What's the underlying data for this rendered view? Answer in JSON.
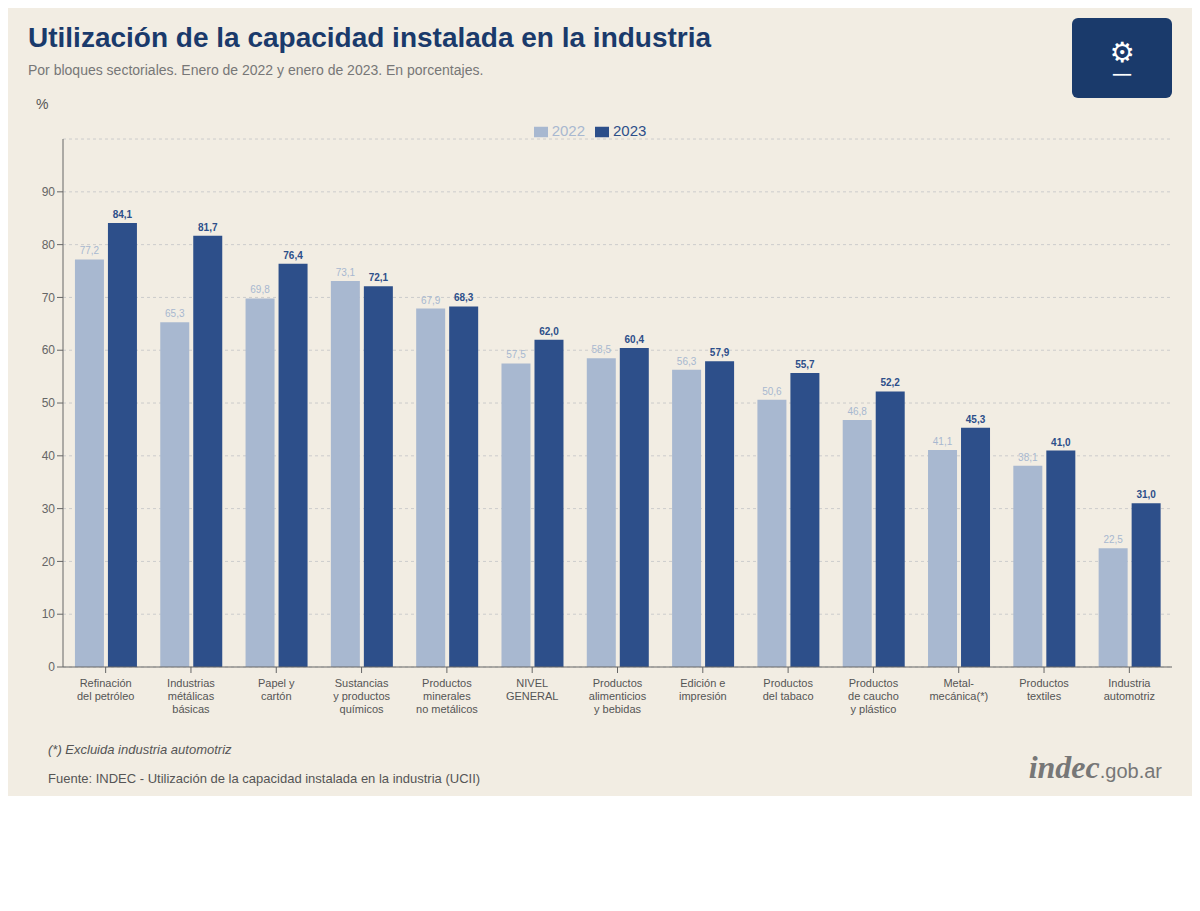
{
  "chart_data": {
    "type": "bar",
    "title": "Utilización de la capacidad instalada en la industria",
    "subtitle": "Por bloques sectoriales. Enero de 2022 y enero de 2023. En porcentajes.",
    "categories": [
      "Refinación\ndel petróleo",
      "Industrias\nmétálicas\nbásicas",
      "Papel y\ncartón",
      "Sustancias\ny productos\nquímicos",
      "Productos\nminerales\nno metálicos",
      "NIVEL\nGENERAL",
      "Productos\nalimenticios\ny bebidas",
      "Edición e\nimpresión",
      "Productos\ndel tabaco",
      "Productos\nde caucho\ny plástico",
      "Metal-\nmecánica(*)",
      "Productos\ntextiles",
      "Industria\nautomotriz"
    ],
    "series": [
      {
        "name": "2022",
        "color": "#a8b8d0",
        "values": [
          77.2,
          65.3,
          69.8,
          73.1,
          67.9,
          57.5,
          58.5,
          56.3,
          50.6,
          46.8,
          41.1,
          38.1,
          22.5
        ],
        "value_labels": [
          "77,2",
          "65,3",
          "69,8",
          "73,1",
          "67,9",
          "57,5",
          "58,5",
          "56,3",
          "50,6",
          "46,8",
          "41,1",
          "38,1",
          "22,5"
        ]
      },
      {
        "name": "2023",
        "color": "#2d4f8a",
        "values": [
          84.1,
          81.7,
          76.4,
          72.1,
          68.3,
          62.0,
          60.4,
          57.9,
          55.7,
          52.2,
          45.3,
          41.0,
          31.0
        ],
        "value_labels": [
          "84,1",
          "81,7",
          "76,4",
          "72,1",
          "68,3",
          "62,0",
          "60,4",
          "57,9",
          "55,7",
          "52,2",
          "45,3",
          "41,0",
          "31,0"
        ]
      }
    ],
    "ylabel": "%",
    "ylim": [
      0,
      100
    ],
    "yticks": [
      0,
      10,
      20,
      30,
      40,
      50,
      60,
      70,
      80,
      90
    ],
    "grid": true,
    "legend": "top",
    "data_labels": true,
    "annotations": [
      "(*) Excluida industria automotriz",
      "Fuente: INDEC - Utilización de la capacidad instalada en la industria (UCII)",
      "indec",
      ".gob.ar",
      "⚙",
      "━━━"
    ]
  }
}
